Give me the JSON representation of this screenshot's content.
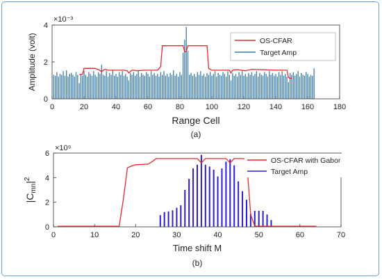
{
  "chart_data": [
    {
      "type": "line",
      "panel_label": "(a)",
      "title": "",
      "xlabel": "Range Cell",
      "ylabel": "Amplitude (volt)",
      "y_exponent_label": "×10⁻³",
      "xlim": [
        0,
        180
      ],
      "ylim": [
        0,
        4
      ],
      "xticks": [
        0,
        20,
        40,
        60,
        80,
        100,
        120,
        140,
        160,
        180
      ],
      "yticks": [
        0,
        2,
        4
      ],
      "grid": false,
      "legend_position": "top-right",
      "legend": [
        "OS-CFAR",
        "Target Amp"
      ],
      "series": [
        {
          "name": "OS-CFAR",
          "color": "#e8262b",
          "style": "line",
          "x": [
            17,
            19,
            20,
            27,
            29,
            31,
            33,
            35,
            40,
            45,
            47,
            48,
            50,
            51,
            53,
            58,
            64,
            66,
            68,
            69,
            82,
            83,
            84,
            85,
            86,
            95,
            97,
            98,
            100,
            101,
            111,
            112,
            113,
            116,
            121,
            125,
            130,
            140,
            146,
            147,
            148,
            149,
            150
          ],
          "values": [
            1.32,
            1.32,
            1.65,
            1.65,
            1.58,
            1.48,
            1.6,
            1.55,
            1.55,
            1.55,
            1.52,
            1.4,
            1.55,
            1.55,
            1.52,
            1.55,
            1.55,
            1.55,
            1.75,
            2.88,
            2.88,
            2.55,
            2.55,
            2.88,
            2.88,
            2.88,
            2.88,
            1.65,
            1.55,
            1.55,
            1.55,
            1.4,
            1.55,
            1.58,
            1.52,
            1.6,
            1.58,
            1.55,
            1.55,
            1.55,
            1.15,
            1.1,
            1.12
          ]
        },
        {
          "name": "Target Amp",
          "color": "#3a7ca8",
          "style": "stem",
          "x": [
            1,
            2,
            3,
            4,
            5,
            6,
            7,
            8,
            9,
            10,
            11,
            12,
            13,
            14,
            15,
            16,
            17,
            18,
            19,
            20,
            21,
            22,
            23,
            24,
            25,
            26,
            27,
            28,
            29,
            30,
            31,
            32,
            33,
            34,
            35,
            36,
            37,
            38,
            39,
            40,
            41,
            42,
            43,
            44,
            45,
            46,
            47,
            48,
            49,
            50,
            51,
            52,
            53,
            54,
            55,
            56,
            57,
            58,
            59,
            60,
            61,
            62,
            63,
            64,
            65,
            66,
            67,
            68,
            69,
            70,
            71,
            72,
            73,
            74,
            75,
            76,
            77,
            78,
            79,
            80,
            81,
            82,
            83,
            84,
            85,
            86,
            87,
            88,
            89,
            90,
            91,
            92,
            93,
            94,
            95,
            96,
            97,
            98,
            99,
            100,
            101,
            102,
            103,
            104,
            105,
            106,
            107,
            108,
            109,
            110,
            111,
            112,
            113,
            114,
            115,
            116,
            117,
            118,
            119,
            120,
            121,
            122,
            123,
            124,
            125,
            126,
            127,
            128,
            129,
            130,
            131,
            132,
            133,
            134,
            135,
            136,
            137,
            138,
            139,
            140,
            141,
            142,
            143,
            144,
            145,
            146,
            147,
            148,
            149,
            150,
            151,
            152,
            153,
            154,
            155,
            156,
            157,
            158,
            159,
            160,
            161,
            162,
            163,
            164
          ],
          "values": [
            1.3,
            1.25,
            1.45,
            1.2,
            1.35,
            1.3,
            1.5,
            1.25,
            1.55,
            1.2,
            1.35,
            1.4,
            1.3,
            1.2,
            1.45,
            1.3,
            0.85,
            1.35,
            1.25,
            1.5,
            1.3,
            1.2,
            1.45,
            1.35,
            1.25,
            1.5,
            1.3,
            1.2,
            1.45,
            1.35,
            1.85,
            1.3,
            1.25,
            1.5,
            1.2,
            1.4,
            1.3,
            1.55,
            1.25,
            1.35,
            1.2,
            1.45,
            1.3,
            1.5,
            1.25,
            1.35,
            1.2,
            1.0,
            1.4,
            1.3,
            1.45,
            1.25,
            1.35,
            1.5,
            1.2,
            1.4,
            1.3,
            1.25,
            1.45,
            1.35,
            1.2,
            1.5,
            1.3,
            1.4,
            1.25,
            1.35,
            1.2,
            1.45,
            1.3,
            1.5,
            1.25,
            1.35,
            1.2,
            1.4,
            1.3,
            1.55,
            1.25,
            1.35,
            1.2,
            1.45,
            1.3,
            2.5,
            3.2,
            3.9,
            2.6,
            1.3,
            1.4,
            1.25,
            1.35,
            1.2,
            1.45,
            1.3,
            1.5,
            1.25,
            1.35,
            1.2,
            1.4,
            1.3,
            1.45,
            1.25,
            1.35,
            1.5,
            1.2,
            1.4,
            1.3,
            1.25,
            1.45,
            1.35,
            1.2,
            1.5,
            1.3,
            1.0,
            1.4,
            1.25,
            1.35,
            1.2,
            1.45,
            1.3,
            1.5,
            1.25,
            1.35,
            1.2,
            1.4,
            1.3,
            1.45,
            1.25,
            1.35,
            1.5,
            1.2,
            1.4,
            1.3,
            1.25,
            1.45,
            1.35,
            1.2,
            1.5,
            1.3,
            1.4,
            1.25,
            1.35,
            1.2,
            1.45,
            1.3,
            1.5,
            1.25,
            1.35,
            1.2,
            0.9,
            1.4,
            1.3,
            1.45,
            1.25,
            1.35,
            1.5,
            1.2,
            1.4,
            1.3,
            1.25,
            1.45,
            1.35,
            1.2,
            1.3,
            1.25,
            1.65
          ]
        }
      ]
    },
    {
      "type": "line",
      "panel_label": "(b)",
      "title": "",
      "xlabel": "Time shift M",
      "ylabel": "|C_mn|^2",
      "y_exponent_label": "×10⁹",
      "xlim": [
        0,
        70
      ],
      "ylim": [
        0,
        6
      ],
      "xticks": [
        0,
        10,
        20,
        30,
        40,
        50,
        60,
        70
      ],
      "yticks": [
        0,
        2,
        4,
        6
      ],
      "grid": false,
      "legend_position": "top-right",
      "legend": [
        "OS-CFAR with Gabor",
        "Target Amp"
      ],
      "series": [
        {
          "name": "OS-CFAR with Gabor",
          "color": "#e8262b",
          "style": "line",
          "x": [
            1,
            16,
            17,
            18,
            19,
            20,
            23,
            24,
            25,
            35,
            36,
            37,
            42,
            43,
            44,
            46,
            47,
            48,
            49,
            64
          ],
          "values": [
            0.05,
            0.05,
            2.2,
            4.8,
            4.95,
            5.05,
            5.1,
            5.3,
            5.55,
            5.55,
            5.2,
            5.55,
            5.55,
            5.2,
            5.55,
            5.55,
            5.5,
            1.0,
            0.05,
            0.05
          ]
        },
        {
          "name": "Target Amp",
          "color": "#2b1bd6",
          "style": "stem",
          "x": [
            26,
            27,
            28,
            29,
            30,
            31,
            32,
            33,
            34,
            35,
            36,
            37,
            38,
            39,
            40,
            41,
            42,
            43,
            44,
            45,
            46,
            47,
            48,
            49,
            50,
            51,
            52,
            53
          ],
          "values": [
            0.95,
            1.2,
            1.25,
            1.35,
            1.55,
            1.75,
            3.0,
            3.9,
            4.75,
            5.05,
            5.85,
            5.05,
            4.9,
            4.65,
            4.1,
            4.75,
            5.3,
            5.5,
            5.0,
            3.7,
            2.9,
            2.2,
            1.05,
            1.3,
            1.3,
            1.3,
            1.0,
            0.55
          ]
        }
      ]
    }
  ]
}
